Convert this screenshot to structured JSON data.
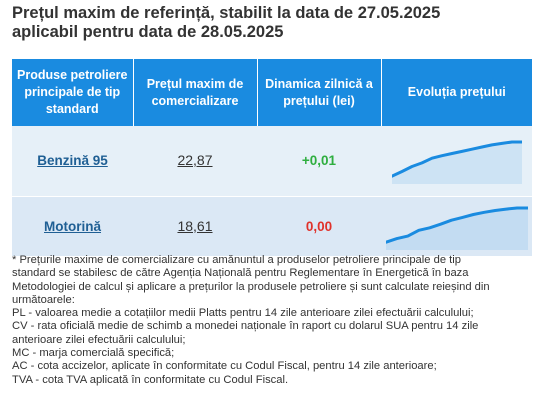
{
  "header": {
    "title_line1": "Prețul maxim de referință, stabilit la data de 27.05.2025",
    "title_line2": "aplicabil pentru data de 28.05.2025"
  },
  "table": {
    "columns": [
      "Produse petroliere principale de tip standard",
      "Prețul maxim de comercializare",
      "Dinamica zilnică a prețului (lei)",
      "Evoluția prețului"
    ],
    "rows": [
      {
        "product": "Benzină 95",
        "price": "22,87",
        "change": "+0,01",
        "change_color": "#2eae3f"
      },
      {
        "product": "Motorină",
        "price": "18,61",
        "change": "0,00",
        "change_color": "#e0322a"
      }
    ]
  },
  "colors": {
    "header_bg": "#1a8be0",
    "row_bg_1": "#e6f0f8",
    "row_bg_2": "#dbe8f5",
    "sparkline": "#1a8be0",
    "link": "#1f5f94"
  },
  "notes": [
    "* Prețurile maxime de comercializare cu amănuntul a produselor petroliere principale de tip",
    "standard se stabilesc de către Agenția Națională pentru Reglementare în Energetică în baza",
    "Metodologiei de calcul și aplicare a prețurilor la produsele petroliere și sunt calculate reieșind din",
    "următoarele:",
    "PL - valoarea medie a cotațiilor medii Platts pentru 14 zile anterioare zilei efectuării calculului;",
    "CV - rata oficială medie de schimb a monedei naționale în raport cu dolarul SUA pentru 14 zile",
    "anterioare zilei efectuării calculului;",
    "MC - marja comercială specifică;",
    "AC - cota accizelor, aplicate în conformitate cu Codul Fiscal, pentru 14 zile anterioare;",
    "TVA - cota TVA aplicată în conformitate cu Codul Fiscal."
  ],
  "chart_data": [
    {
      "type": "area",
      "series": [
        {
          "values": [
            0.05,
            0.18,
            0.32,
            0.42,
            0.55,
            0.62,
            0.68,
            0.74,
            0.8,
            0.86,
            0.92,
            0.96,
            1.0,
            1.0
          ]
        }
      ]
    },
    {
      "type": "area",
      "series": [
        {
          "values": [
            0.05,
            0.15,
            0.22,
            0.38,
            0.45,
            0.55,
            0.66,
            0.74,
            0.82,
            0.88,
            0.93,
            0.97,
            1.0,
            1.0
          ]
        }
      ]
    }
  ]
}
